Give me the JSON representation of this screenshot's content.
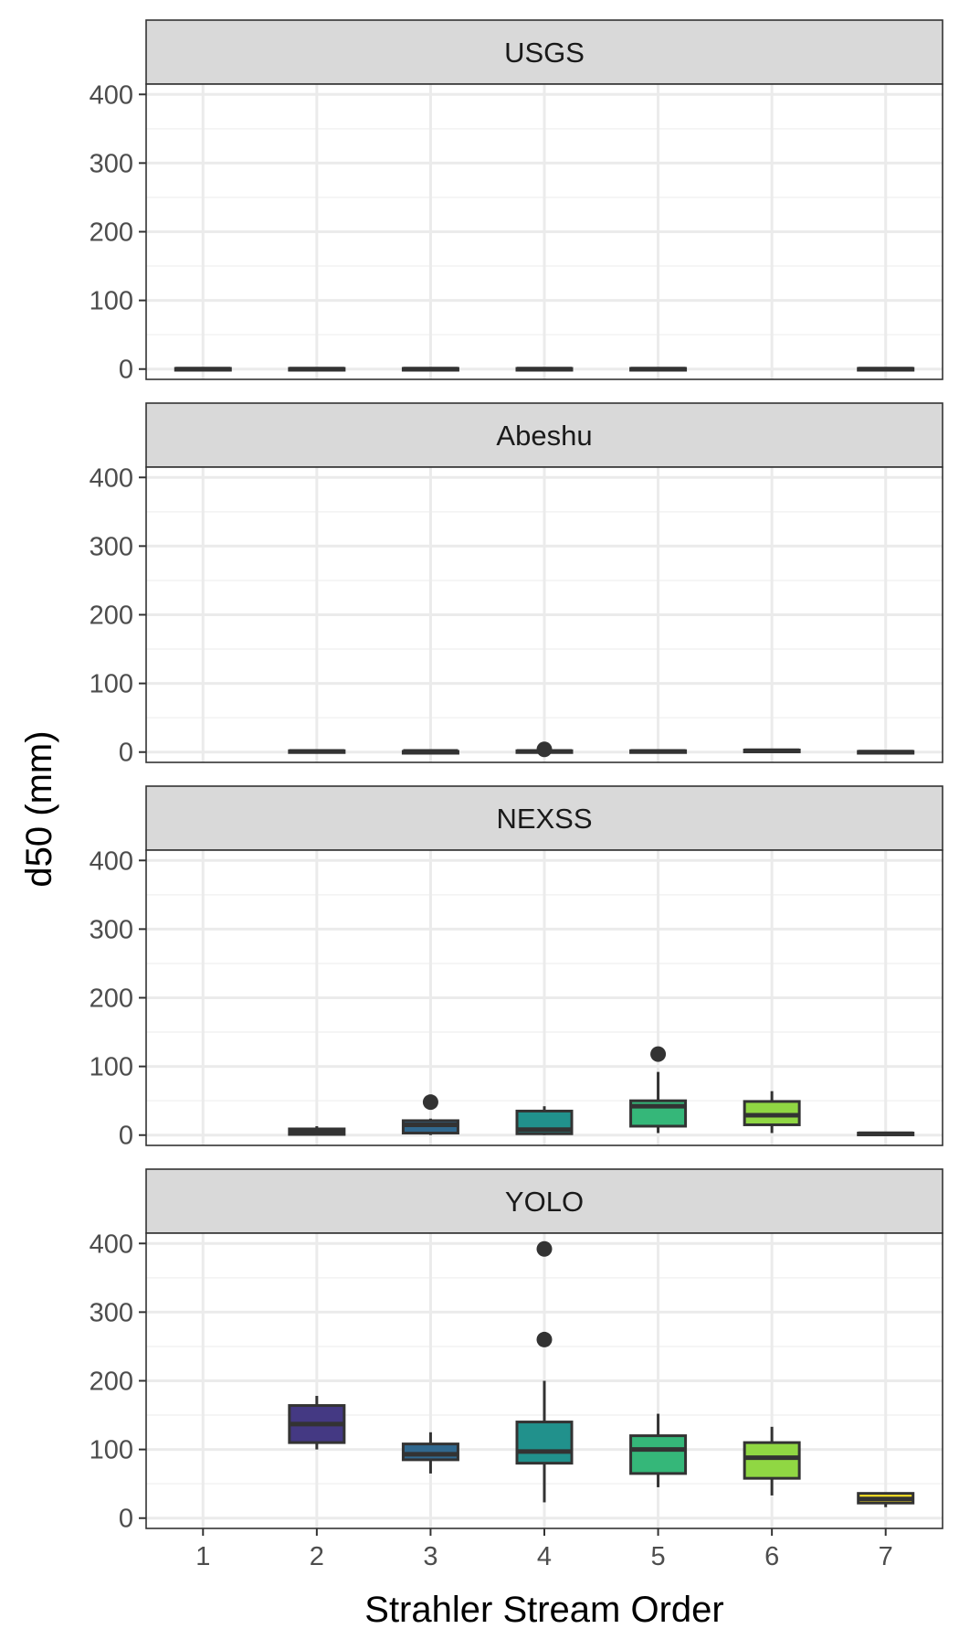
{
  "chart_data": {
    "type": "boxplot",
    "xlabel": "Strahler Stream Order",
    "ylabel": "d50 (mm)",
    "categories": [
      "1",
      "2",
      "3",
      "4",
      "5",
      "6",
      "7"
    ],
    "ylim": [
      -15,
      415
    ],
    "y_ticks": [
      0,
      100,
      200,
      300,
      400
    ],
    "y_tick_labels": [
      "0",
      "100",
      "200",
      "300",
      "400"
    ],
    "grid": true,
    "legend": "none",
    "order_colors": {
      "1": "#440154",
      "2": "#443983",
      "3": "#31688e",
      "4": "#21918c",
      "5": "#35b779",
      "6": "#90d743",
      "7": "#fde725"
    },
    "panels": [
      {
        "name": "USGS",
        "boxes": [
          {
            "x": "1",
            "lower": 0,
            "q1": 0,
            "median": 0,
            "q3": 1,
            "upper": 1,
            "outliers": []
          },
          {
            "x": "2",
            "lower": 0,
            "q1": 0,
            "median": 0,
            "q3": 1,
            "upper": 1,
            "outliers": []
          },
          {
            "x": "3",
            "lower": 0,
            "q1": 0,
            "median": 0,
            "q3": 1,
            "upper": 1,
            "outliers": []
          },
          {
            "x": "4",
            "lower": 0,
            "q1": 0,
            "median": 0,
            "q3": 1,
            "upper": 1,
            "outliers": []
          },
          {
            "x": "5",
            "lower": 0,
            "q1": 0,
            "median": 0,
            "q3": 1,
            "upper": 1,
            "outliers": []
          },
          {
            "x": "7",
            "lower": 0,
            "q1": 0,
            "median": 0,
            "q3": 1,
            "upper": 1,
            "outliers": []
          }
        ]
      },
      {
        "name": "Abeshu",
        "boxes": [
          {
            "x": "2",
            "lower": 0,
            "q1": 0,
            "median": 1,
            "q3": 2,
            "upper": 3,
            "outliers": []
          },
          {
            "x": "3",
            "lower": 0,
            "q1": 0,
            "median": 1,
            "q3": 1,
            "upper": 2,
            "outliers": []
          },
          {
            "x": "4",
            "lower": 0,
            "q1": 0,
            "median": 1,
            "q3": 2,
            "upper": 3,
            "outliers": [
              4
            ]
          },
          {
            "x": "5",
            "lower": 0,
            "q1": 1,
            "median": 1,
            "q3": 2,
            "upper": 3,
            "outliers": []
          },
          {
            "x": "6",
            "lower": 1,
            "q1": 1,
            "median": 2,
            "q3": 3,
            "upper": 4,
            "outliers": []
          },
          {
            "x": "7",
            "lower": 0,
            "q1": 0,
            "median": 0,
            "q3": 1,
            "upper": 1,
            "outliers": []
          }
        ]
      },
      {
        "name": "NEXSS",
        "boxes": [
          {
            "x": "2",
            "lower": 0,
            "q1": 1,
            "median": 5,
            "q3": 9,
            "upper": 13,
            "outliers": []
          },
          {
            "x": "3",
            "lower": 0,
            "q1": 3,
            "median": 15,
            "q3": 21,
            "upper": 24,
            "outliers": [
              48
            ]
          },
          {
            "x": "4",
            "lower": 0,
            "q1": 2,
            "median": 8,
            "q3": 35,
            "upper": 42,
            "outliers": []
          },
          {
            "x": "5",
            "lower": 3,
            "q1": 13,
            "median": 42,
            "q3": 50,
            "upper": 92,
            "outliers": [
              118
            ]
          },
          {
            "x": "6",
            "lower": 3,
            "q1": 15,
            "median": 29,
            "q3": 49,
            "upper": 64,
            "outliers": []
          },
          {
            "x": "7",
            "lower": 0,
            "q1": 1,
            "median": 2,
            "q3": 3,
            "upper": 4,
            "outliers": []
          }
        ]
      },
      {
        "name": "YOLO",
        "boxes": [
          {
            "x": "2",
            "lower": 100,
            "q1": 110,
            "median": 137,
            "q3": 164,
            "upper": 178,
            "outliers": []
          },
          {
            "x": "3",
            "lower": 65,
            "q1": 85,
            "median": 93,
            "q3": 108,
            "upper": 125,
            "outliers": []
          },
          {
            "x": "4",
            "lower": 23,
            "q1": 80,
            "median": 97,
            "q3": 140,
            "upper": 200,
            "outliers": [
              260,
              392
            ]
          },
          {
            "x": "5",
            "lower": 45,
            "q1": 65,
            "median": 100,
            "q3": 120,
            "upper": 152,
            "outliers": []
          },
          {
            "x": "6",
            "lower": 33,
            "q1": 58,
            "median": 88,
            "q3": 110,
            "upper": 133,
            "outliers": []
          },
          {
            "x": "7",
            "lower": 16,
            "q1": 22,
            "median": 28,
            "q3": 36,
            "upper": 37,
            "outliers": []
          }
        ]
      }
    ]
  }
}
